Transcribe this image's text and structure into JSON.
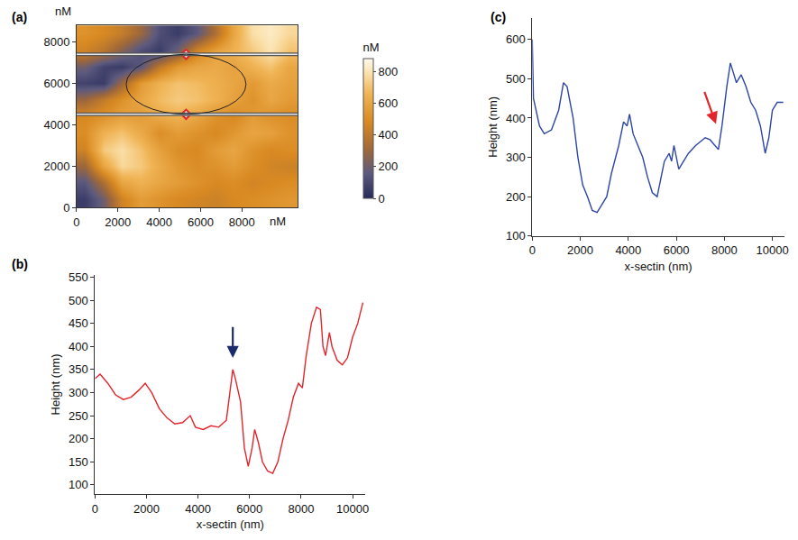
{
  "chart_data": [
    {
      "title": "(a)",
      "type": "heatmap",
      "xlabel": "nM",
      "ylabel": "nM",
      "grid": false,
      "x": [
        400,
        1300,
        2200,
        3100,
        4000,
        4900,
        5800,
        6700,
        7600,
        8500,
        9400,
        10300
      ],
      "y": [
        400,
        1200,
        2000,
        2800,
        3600,
        4400,
        5200,
        6000,
        6800,
        7600,
        8400
      ],
      "z": [
        [
          60,
          200,
          450,
          560,
          520,
          480,
          460,
          440,
          480,
          500,
          520,
          540
        ],
        [
          150,
          350,
          600,
          650,
          600,
          560,
          520,
          480,
          500,
          460,
          480,
          500
        ],
        [
          300,
          600,
          760,
          720,
          620,
          540,
          500,
          520,
          560,
          500,
          460,
          440
        ],
        [
          450,
          720,
          780,
          700,
          580,
          500,
          480,
          560,
          600,
          520,
          480,
          500
        ],
        [
          500,
          650,
          700,
          620,
          500,
          560,
          520,
          480,
          540,
          600,
          580,
          520
        ],
        [
          480,
          520,
          580,
          560,
          620,
          650,
          600,
          520,
          480,
          560,
          520,
          500
        ],
        [
          300,
          420,
          520,
          600,
          680,
          720,
          700,
          650,
          580,
          520,
          600,
          550
        ],
        [
          80,
          60,
          300,
          550,
          650,
          700,
          680,
          640,
          600,
          550,
          620,
          580
        ],
        [
          200,
          80,
          60,
          150,
          400,
          550,
          600,
          620,
          580,
          650,
          700,
          600
        ],
        [
          450,
          380,
          250,
          120,
          60,
          200,
          450,
          580,
          650,
          720,
          800,
          700
        ],
        [
          520,
          480,
          420,
          300,
          120,
          60,
          150,
          350,
          600,
          780,
          820,
          760
        ]
      ],
      "xlim": [
        0,
        10700
      ],
      "ylim": [
        0,
        8800
      ],
      "xticks": [
        0,
        2000,
        4000,
        6000,
        8000
      ],
      "yticks": [
        0,
        2000,
        4000,
        6000,
        8000
      ],
      "xlabel_x": 9750,
      "colorbar": {
        "title": "nM",
        "range": [
          0,
          880
        ],
        "ticks": [
          0,
          200,
          400,
          600,
          800
        ]
      },
      "overlays": {
        "lines_y": [
          4500,
          7400
        ],
        "markers": [
          {
            "x": 5300,
            "y": 7400
          },
          {
            "x": 5300,
            "y": 4500
          }
        ],
        "ellipse": {
          "cx": 5300,
          "cy": 5950,
          "rx": 2900,
          "ry": 1450
        }
      }
    },
    {
      "title": "(b)",
      "type": "line",
      "color": "#e3242b",
      "grid": false,
      "xlabel": "x-sectin (nm)",
      "ylabel": "Height (nm)",
      "x": [
        0,
        200,
        500,
        800,
        1100,
        1400,
        1700,
        1950,
        2200,
        2500,
        2800,
        3100,
        3400,
        3700,
        3900,
        4200,
        4500,
        4800,
        5100,
        5250,
        5350,
        5450,
        5650,
        5800,
        5950,
        6100,
        6200,
        6350,
        6500,
        6700,
        6900,
        7100,
        7300,
        7500,
        7700,
        7900,
        8050,
        8200,
        8400,
        8600,
        8750,
        8850,
        8950,
        9100,
        9200,
        9400,
        9600,
        9800,
        10000,
        10200,
        10400
      ],
      "values": [
        330,
        340,
        320,
        295,
        285,
        290,
        305,
        320,
        300,
        265,
        245,
        232,
        235,
        250,
        225,
        220,
        228,
        225,
        240,
        300,
        350,
        330,
        280,
        180,
        140,
        180,
        220,
        190,
        150,
        130,
        125,
        150,
        200,
        240,
        290,
        320,
        310,
        380,
        450,
        485,
        480,
        400,
        380,
        430,
        400,
        370,
        360,
        375,
        420,
        450,
        495
      ],
      "xlim": [
        0,
        10500
      ],
      "ylim": [
        80,
        555
      ],
      "xticks": [
        0,
        2000,
        4000,
        6000,
        8000,
        10000
      ],
      "yticks": [
        100,
        150,
        200,
        250,
        300,
        350,
        400,
        450,
        500,
        550
      ],
      "arrow": {
        "x": 5350,
        "y": 375,
        "tail_x": 5350,
        "tail_y": 445,
        "color": "#1b2a6b"
      }
    },
    {
      "title": "(c)",
      "type": "line",
      "color": "#2b45a8",
      "grid": false,
      "xlabel": "x-sectin (nm)",
      "ylabel": "Height (nm)",
      "x": [
        0,
        50,
        300,
        500,
        800,
        1100,
        1300,
        1450,
        1700,
        1900,
        2100,
        2300,
        2500,
        2700,
        2900,
        3100,
        3300,
        3600,
        3800,
        3950,
        4050,
        4200,
        4400,
        4600,
        4800,
        5000,
        5200,
        5300,
        5500,
        5700,
        5800,
        5900,
        6100,
        6300,
        6500,
        6800,
        7000,
        7200,
        7400,
        7600,
        7750,
        7900,
        8100,
        8250,
        8400,
        8500,
        8700,
        8900,
        9100,
        9300,
        9500,
        9700,
        9850,
        10000,
        10200,
        10450
      ],
      "values": [
        600,
        450,
        380,
        360,
        370,
        420,
        490,
        480,
        400,
        300,
        230,
        200,
        165,
        160,
        180,
        200,
        260,
        330,
        390,
        380,
        410,
        360,
        330,
        300,
        250,
        210,
        200,
        230,
        290,
        310,
        290,
        330,
        270,
        290,
        310,
        330,
        340,
        350,
        345,
        330,
        320,
        380,
        480,
        540,
        510,
        490,
        510,
        480,
        440,
        420,
        380,
        310,
        350,
        420,
        440,
        440
      ],
      "xlim": [
        0,
        10500
      ],
      "ylim": [
        100,
        655
      ],
      "xticks": [
        0,
        2000,
        4000,
        6000,
        8000,
        10000
      ],
      "yticks": [
        100,
        200,
        300,
        400,
        500,
        600
      ],
      "arrow": {
        "x": 7650,
        "y": 385,
        "tail_x": 7150,
        "tail_y": 470,
        "color": "#e3242b"
      }
    }
  ]
}
